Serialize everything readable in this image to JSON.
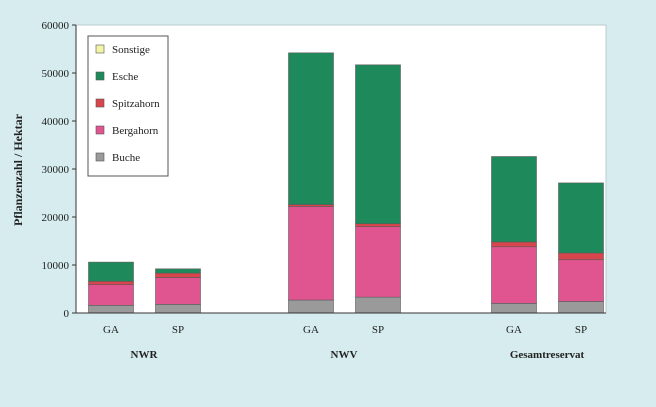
{
  "chart_data": {
    "type": "bar",
    "stacked": true,
    "ylabel": "Pflanzenzahl / Hektar",
    "ylim": [
      0,
      60000
    ],
    "yticks": [
      0,
      10000,
      20000,
      30000,
      40000,
      50000,
      60000
    ],
    "ytick_labels": [
      "0",
      "10000",
      "20000",
      "30000",
      "40000",
      "50000",
      "60000"
    ],
    "grid": false,
    "legend_position": "top-left",
    "groups": [
      {
        "label": "NWR",
        "categories": [
          "GA",
          "SP"
        ]
      },
      {
        "label": "NWV",
        "categories": [
          "GA",
          "SP"
        ]
      },
      {
        "label": "Gesamtreservat",
        "categories": [
          "GA",
          "SP"
        ]
      }
    ],
    "categories": [
      "GA",
      "SP",
      "GA",
      "SP",
      "GA",
      "SP"
    ],
    "series": [
      {
        "name": "Buche",
        "color": "#9a9a9a",
        "values": [
          1600,
          1800,
          2700,
          3300,
          2000,
          2400
        ]
      },
      {
        "name": "Bergahorn",
        "color": "#e0558f",
        "values": [
          4300,
          5600,
          19500,
          14700,
          11800,
          8700
        ]
      },
      {
        "name": "Spitzahorn",
        "color": "#d9454c",
        "values": [
          700,
          900,
          400,
          600,
          1000,
          1400
        ]
      },
      {
        "name": "Esche",
        "color": "#1e8a5c",
        "values": [
          4000,
          900,
          31600,
          33100,
          17800,
          14600
        ]
      },
      {
        "name": "Sonstige",
        "color": "#f4f4a8",
        "values": [
          0,
          0,
          0,
          0,
          0,
          0
        ]
      }
    ],
    "legend_order": [
      "Sonstige",
      "Esche",
      "Spitzahorn",
      "Bergahorn",
      "Buche"
    ]
  }
}
